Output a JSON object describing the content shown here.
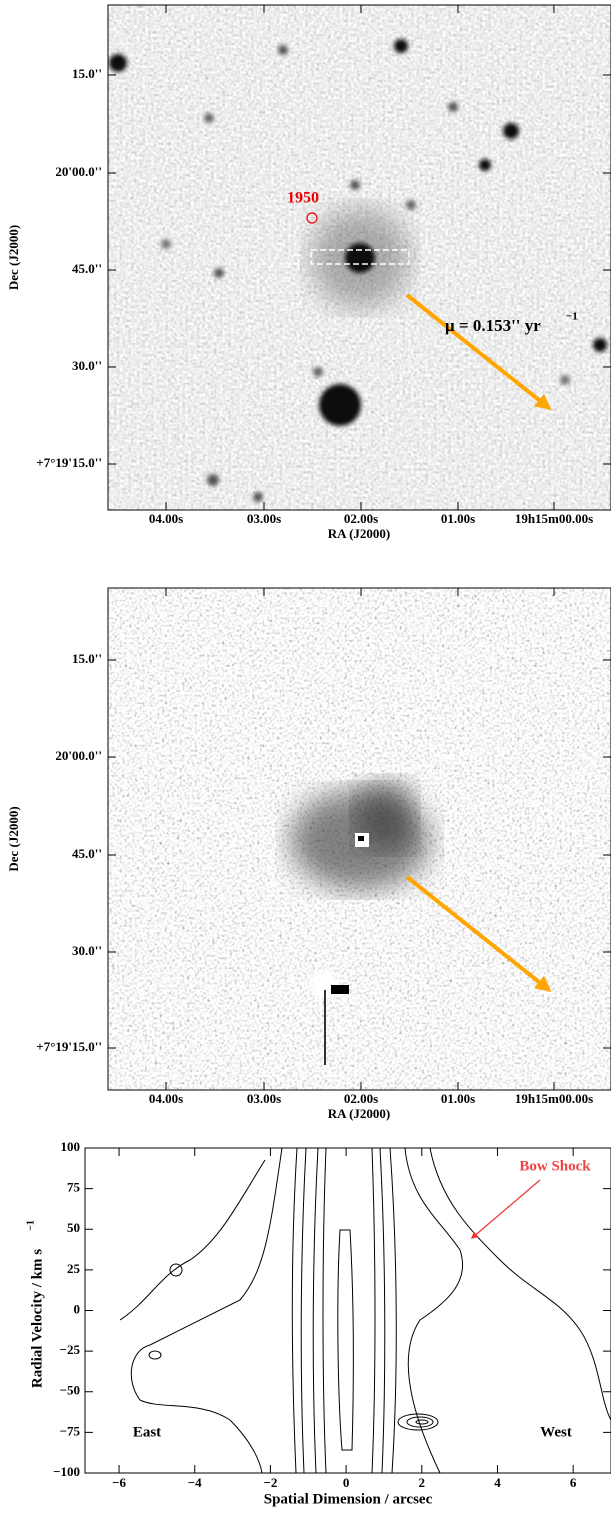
{
  "image_panels": [
    {
      "xtick_labels": [
        "04.00s",
        "03.00s",
        "02.00s",
        "01.00s",
        "19h15m00.00s"
      ],
      "ytick_labels": [
        "15.0''",
        "20'00.0''",
        "45.0''",
        "30.0''",
        "+7°19'15.0''"
      ],
      "xlabel": "RA (J2000)",
      "ylabel": "Dec (J2000)",
      "source_label": "1950",
      "proper_motion": "μ = 0.153'' yr",
      "proper_motion_unit": "−1"
    },
    {
      "xtick_labels": [
        "04.00s",
        "03.00s",
        "02.00s",
        "01.00s",
        "19h15m00.00s"
      ],
      "ytick_labels": [
        "15.0''",
        "20'00.0''",
        "45.0''",
        "30.0''",
        "+7°19'15.0''"
      ],
      "xlabel": "RA (J2000)",
      "ylabel": "Dec (J2000)"
    }
  ],
  "chart_data": {
    "type": "contour",
    "xlabel": "Spatial Dimension / arcsec",
    "ylabel": "Radial Velocity / km s",
    "ylabel_unit": "−1",
    "xlim": [
      -6.9,
      7.0
    ],
    "ylim": [
      -100,
      100
    ],
    "xticks": [
      {
        "value": -6,
        "label": "−6"
      },
      {
        "value": -4,
        "label": "−4"
      },
      {
        "value": -2,
        "label": "−2"
      },
      0,
      2,
      4,
      6
    ],
    "yticks": [
      {
        "value": -100,
        "label": "−100"
      },
      {
        "value": -75,
        "label": "−75"
      },
      {
        "value": -50,
        "label": "−50"
      },
      {
        "value": -25,
        "label": "−25"
      },
      0,
      25,
      50,
      75,
      100
    ],
    "annotations": [
      "Bow Shock",
      "East",
      "West"
    ]
  }
}
